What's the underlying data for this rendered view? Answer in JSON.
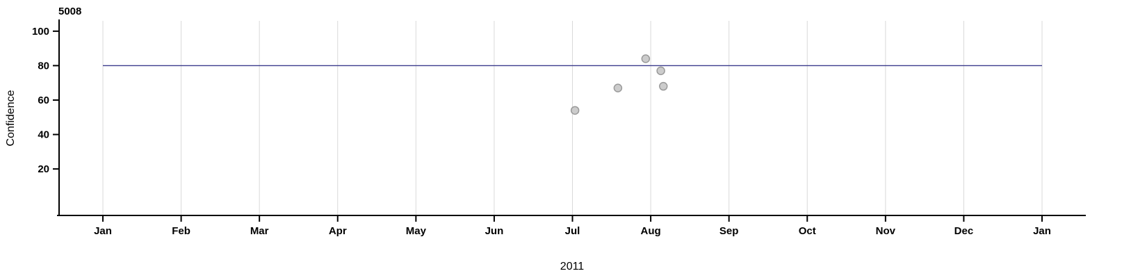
{
  "chart_data": {
    "type": "scatter",
    "title": "5008",
    "xlabel": "2011",
    "ylabel": "Confidence",
    "x_tick_labels": [
      "Jan",
      "Feb",
      "Mar",
      "Apr",
      "May",
      "Jun",
      "Jul",
      "Aug",
      "Sep",
      "Oct",
      "Nov",
      "Dec",
      "Jan"
    ],
    "y_ticks": [
      100,
      80,
      60,
      40,
      20
    ],
    "ylim": [
      -7,
      106
    ],
    "x_range": "Jan 2011 to Jan 2012",
    "grid": "vertical gridlines at each month, no horizontal gridlines",
    "legend": "none",
    "reference_line": {
      "y": 80,
      "color": "#3a3a8c"
    },
    "points": [
      {
        "date": "2011-07-02",
        "value": 54
      },
      {
        "date": "2011-07-19",
        "value": 67
      },
      {
        "date": "2011-07-30",
        "value": 84
      },
      {
        "date": "2011-08-05",
        "value": 77
      },
      {
        "date": "2011-08-06",
        "value": 68
      }
    ],
    "style": {
      "point_fill": "#c9c9c9",
      "point_stroke": "#9a9a9a",
      "grid_color": "#d9d9d9",
      "axis_color": "#000000"
    }
  }
}
